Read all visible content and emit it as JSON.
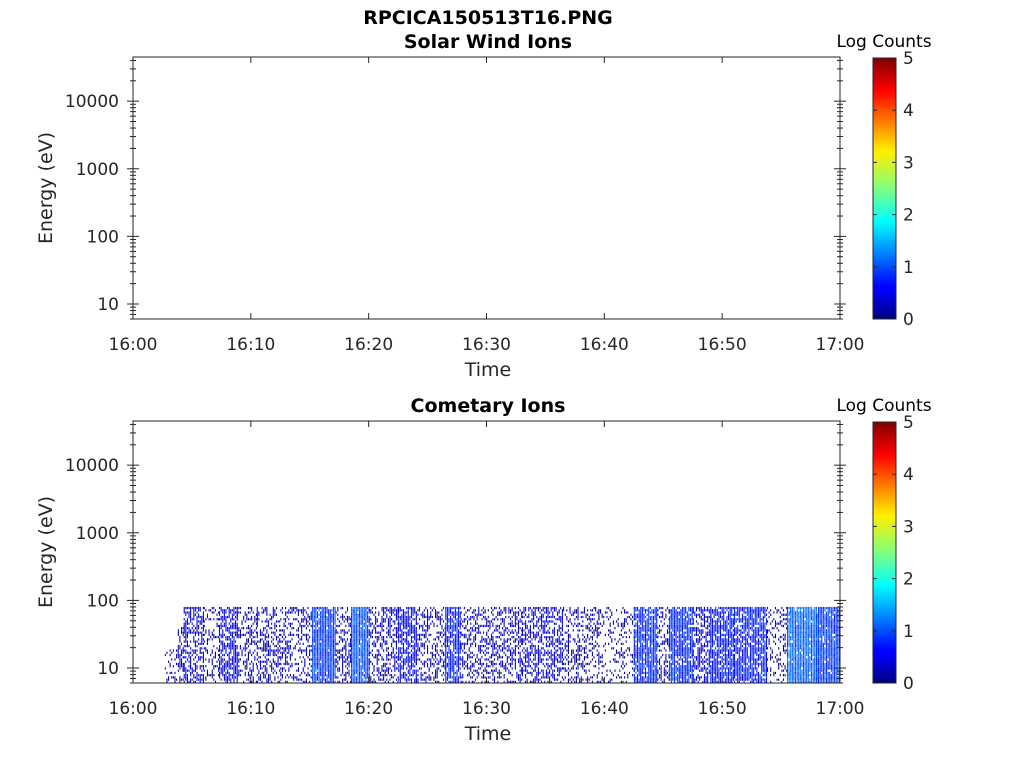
{
  "figure_title": "RPCICA150513T16.PNG",
  "chart_data": [
    {
      "type": "heatmap",
      "title": "Solar Wind Ions",
      "xlabel": "Time",
      "ylabel": "Energy (eV)",
      "x_ticks": [
        "16:00",
        "16:10",
        "16:20",
        "16:30",
        "16:40",
        "16:50",
        "17:00"
      ],
      "xlim_minutes": [
        0,
        60
      ],
      "y_scale": "log",
      "ylim": [
        6,
        45000
      ],
      "y_ticks": [
        10,
        100,
        1000,
        10000
      ],
      "y_tick_labels": [
        "10",
        "100",
        "1000",
        "10000"
      ],
      "colorbar": {
        "title": "Log Counts",
        "range": [
          0,
          5
        ],
        "ticks": [
          "0",
          "1",
          "2",
          "3",
          "4",
          "5"
        ],
        "colormap": "jet"
      },
      "bursts": []
    },
    {
      "type": "heatmap",
      "title": "Cometary Ions",
      "xlabel": "Time",
      "ylabel": "Energy (eV)",
      "x_ticks": [
        "16:00",
        "16:10",
        "16:20",
        "16:30",
        "16:40",
        "16:50",
        "17:00"
      ],
      "xlim_minutes": [
        0,
        60
      ],
      "y_scale": "log",
      "ylim": [
        6,
        45000
      ],
      "y_ticks": [
        10,
        100,
        1000,
        10000
      ],
      "y_tick_labels": [
        "10",
        "100",
        "1000",
        "10000"
      ],
      "colorbar": {
        "title": "Log Counts",
        "range": [
          0,
          5
        ],
        "ticks": [
          "0",
          "1",
          "2",
          "3",
          "4",
          "5"
        ],
        "colormap": "jet"
      },
      "data_energy_range_eV": [
        6,
        80
      ],
      "bursts": [
        {
          "start_min": 2.7,
          "end_min": 3.8,
          "log_counts": 0.2,
          "density": 0.3,
          "emax_eV": 18
        },
        {
          "start_min": 3.8,
          "end_min": 4.3,
          "log_counts": 0.3,
          "density": 0.4,
          "emax_eV": 40
        },
        {
          "start_min": 4.3,
          "end_min": 6.0,
          "log_counts": 0.4,
          "density": 0.55,
          "emax_eV": 80
        },
        {
          "start_min": 6.0,
          "end_min": 7.3,
          "log_counts": 0.2,
          "density": 0.3,
          "emax_eV": 80
        },
        {
          "start_min": 7.3,
          "end_min": 8.8,
          "log_counts": 0.5,
          "density": 0.65,
          "emax_eV": 80
        },
        {
          "start_min": 8.8,
          "end_min": 10.5,
          "log_counts": 0.2,
          "density": 0.35,
          "emax_eV": 80
        },
        {
          "start_min": 10.5,
          "end_min": 12.5,
          "log_counts": 0.3,
          "density": 0.4,
          "emax_eV": 80
        },
        {
          "start_min": 12.5,
          "end_min": 15.2,
          "log_counts": 0.3,
          "density": 0.4,
          "emax_eV": 80
        },
        {
          "start_min": 15.2,
          "end_min": 17.2,
          "log_counts": 0.9,
          "density": 0.95,
          "emax_eV": 80
        },
        {
          "start_min": 17.2,
          "end_min": 18.5,
          "log_counts": 0.3,
          "density": 0.45,
          "emax_eV": 80
        },
        {
          "start_min": 18.5,
          "end_min": 20.0,
          "log_counts": 1.0,
          "density": 0.95,
          "emax_eV": 80
        },
        {
          "start_min": 20.0,
          "end_min": 22.5,
          "log_counts": 0.3,
          "density": 0.45,
          "emax_eV": 80
        },
        {
          "start_min": 22.5,
          "end_min": 24.0,
          "log_counts": 0.6,
          "density": 0.7,
          "emax_eV": 80
        },
        {
          "start_min": 24.0,
          "end_min": 26.5,
          "log_counts": 0.3,
          "density": 0.4,
          "emax_eV": 80
        },
        {
          "start_min": 26.5,
          "end_min": 27.8,
          "log_counts": 0.7,
          "density": 0.8,
          "emax_eV": 80
        },
        {
          "start_min": 27.8,
          "end_min": 30.5,
          "log_counts": 0.3,
          "density": 0.4,
          "emax_eV": 80
        },
        {
          "start_min": 30.5,
          "end_min": 33.0,
          "log_counts": 0.3,
          "density": 0.45,
          "emax_eV": 80
        },
        {
          "start_min": 33.0,
          "end_min": 36.5,
          "log_counts": 0.4,
          "density": 0.5,
          "emax_eV": 80
        },
        {
          "start_min": 36.5,
          "end_min": 39.5,
          "log_counts": 0.2,
          "density": 0.35,
          "emax_eV": 80
        },
        {
          "start_min": 39.5,
          "end_min": 42.5,
          "log_counts": 0.2,
          "density": 0.25,
          "emax_eV": 80
        },
        {
          "start_min": 42.5,
          "end_min": 44.5,
          "log_counts": 0.8,
          "density": 0.85,
          "emax_eV": 80
        },
        {
          "start_min": 44.5,
          "end_min": 45.5,
          "log_counts": 0.3,
          "density": 0.4,
          "emax_eV": 80
        },
        {
          "start_min": 45.5,
          "end_min": 47.5,
          "log_counts": 0.8,
          "density": 0.85,
          "emax_eV": 80
        },
        {
          "start_min": 47.5,
          "end_min": 49.0,
          "log_counts": 0.4,
          "density": 0.55,
          "emax_eV": 80
        },
        {
          "start_min": 49.0,
          "end_min": 51.0,
          "log_counts": 0.7,
          "density": 0.8,
          "emax_eV": 80
        },
        {
          "start_min": 51.0,
          "end_min": 53.8,
          "log_counts": 0.7,
          "density": 0.8,
          "emax_eV": 80
        },
        {
          "start_min": 53.8,
          "end_min": 55.5,
          "log_counts": 0.2,
          "density": 0.25,
          "emax_eV": 80
        },
        {
          "start_min": 55.5,
          "end_min": 58.0,
          "log_counts": 1.1,
          "density": 0.95,
          "emax_eV": 80
        },
        {
          "start_min": 58.0,
          "end_min": 60.0,
          "log_counts": 0.9,
          "density": 0.95,
          "emax_eV": 80
        }
      ]
    }
  ]
}
